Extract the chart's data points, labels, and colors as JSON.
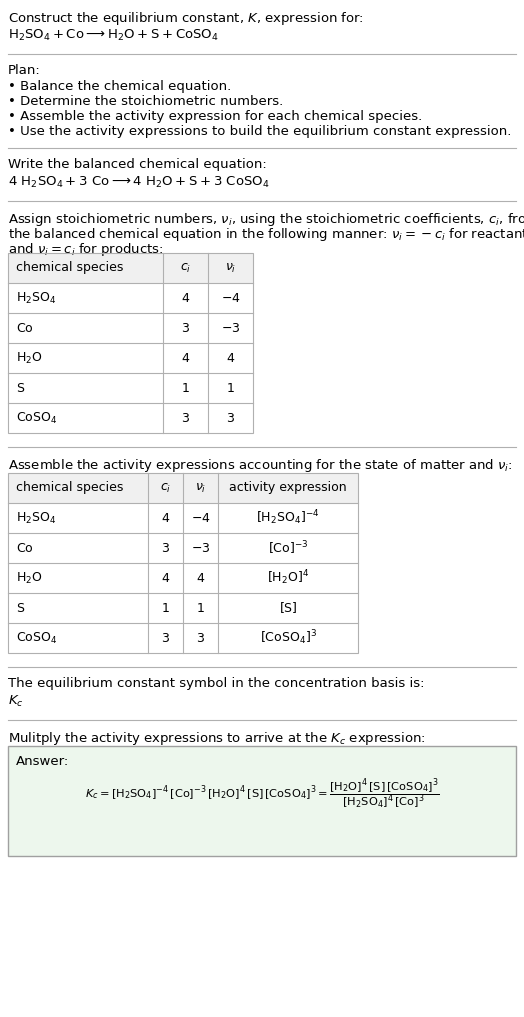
{
  "title_line1": "Construct the equilibrium constant, $K$, expression for:",
  "title_line2": "$\\mathrm{H_2SO_4 + Co \\longrightarrow H_2O + S + CoSO_4}$",
  "plan_header": "Plan:",
  "plan_items": [
    "• Balance the chemical equation.",
    "• Determine the stoichiometric numbers.",
    "• Assemble the activity expression for each chemical species.",
    "• Use the activity expressions to build the equilibrium constant expression."
  ],
  "balanced_header": "Write the balanced chemical equation:",
  "balanced_eq": "$\\mathrm{4\\ H_2SO_4 + 3\\ Co \\longrightarrow 4\\ H_2O + S + 3\\ CoSO_4}$",
  "stoich_intro1": "Assign stoichiometric numbers, $\\nu_i$, using the stoichiometric coefficients, $c_i$, from",
  "stoich_intro2": "the balanced chemical equation in the following manner: $\\nu_i = -c_i$ for reactants",
  "stoich_intro3": "and $\\nu_i = c_i$ for products:",
  "table1_headers": [
    "chemical species",
    "$c_i$",
    "$\\nu_i$"
  ],
  "table1_rows": [
    [
      "$\\mathrm{H_2SO_4}$",
      "4",
      "$-4$"
    ],
    [
      "$\\mathrm{Co}$",
      "3",
      "$-3$"
    ],
    [
      "$\\mathrm{H_2O}$",
      "4",
      "4"
    ],
    [
      "$\\mathrm{S}$",
      "1",
      "1"
    ],
    [
      "$\\mathrm{CoSO_4}$",
      "3",
      "3"
    ]
  ],
  "activity_intro": "Assemble the activity expressions accounting for the state of matter and $\\nu_i$:",
  "table2_headers": [
    "chemical species",
    "$c_i$",
    "$\\nu_i$",
    "activity expression"
  ],
  "table2_rows": [
    [
      "$\\mathrm{H_2SO_4}$",
      "4",
      "$-4$",
      "$[\\mathrm{H_2SO_4}]^{-4}$"
    ],
    [
      "$\\mathrm{Co}$",
      "3",
      "$-3$",
      "$[\\mathrm{Co}]^{-3}$"
    ],
    [
      "$\\mathrm{H_2O}$",
      "4",
      "4",
      "$[\\mathrm{H_2O}]^4$"
    ],
    [
      "$\\mathrm{S}$",
      "1",
      "1",
      "$[\\mathrm{S}]$"
    ],
    [
      "$\\mathrm{CoSO_4}$",
      "3",
      "3",
      "$[\\mathrm{CoSO_4}]^3$"
    ]
  ],
  "kc_intro": "The equilibrium constant symbol in the concentration basis is:",
  "kc_symbol": "$K_c$",
  "multiply_intro": "Mulitply the activity expressions to arrive at the $K_c$ expression:",
  "answer_label": "Answer:",
  "bg_color": "#ffffff",
  "text_color": "#000000",
  "table_border_color": "#b0b0b0",
  "table_header_bg": "#f0f0f0",
  "answer_box_bg": "#edf7ed",
  "answer_box_border": "#a0a0a0",
  "separator_color": "#b0b0b0",
  "font_size": 9.5,
  "small_font": 9.0
}
